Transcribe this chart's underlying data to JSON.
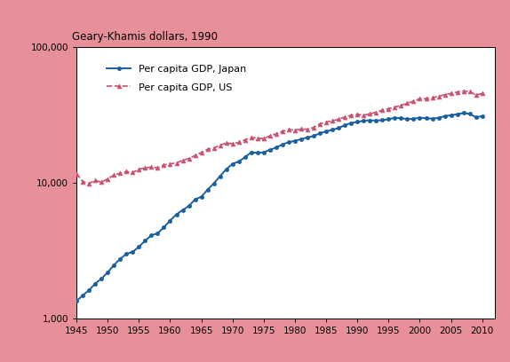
{
  "title": "Geary-Khamis dollars, 1990",
  "background_color": "#e8909a",
  "plot_background": "#ffffff",
  "japan_color": "#1a5fa0",
  "us_color": "#c85070",
  "japan_label": "Per capita GDP, Japan",
  "us_label": "Per capita GDP, US",
  "xlim": [
    1945,
    2012
  ],
  "ylim_log": [
    1000,
    100000
  ],
  "xticks": [
    1945,
    1950,
    1955,
    1960,
    1965,
    1970,
    1975,
    1980,
    1985,
    1990,
    1995,
    2000,
    2005,
    2010
  ],
  "yticks": [
    1000,
    10000,
    100000
  ],
  "ytick_labels": [
    "1,000",
    "10,000",
    "100,000"
  ],
  "japan_years": [
    1945,
    1946,
    1947,
    1948,
    1949,
    1950,
    1951,
    1952,
    1953,
    1954,
    1955,
    1956,
    1957,
    1958,
    1959,
    1960,
    1961,
    1962,
    1963,
    1964,
    1965,
    1966,
    1967,
    1968,
    1969,
    1970,
    1971,
    1972,
    1973,
    1974,
    1975,
    1976,
    1977,
    1978,
    1979,
    1980,
    1981,
    1982,
    1983,
    1984,
    1985,
    1986,
    1987,
    1988,
    1989,
    1990,
    1991,
    1992,
    1993,
    1994,
    1995,
    1996,
    1997,
    1998,
    1999,
    2000,
    2001,
    2002,
    2003,
    2004,
    2005,
    2006,
    2007,
    2008,
    2009,
    2010
  ],
  "japan_gdp": [
    1346,
    1482,
    1617,
    1810,
    1970,
    2188,
    2480,
    2750,
    3000,
    3100,
    3380,
    3750,
    4100,
    4250,
    4700,
    5270,
    5850,
    6300,
    6750,
    7550,
    7900,
    8900,
    9900,
    11200,
    12600,
    13800,
    14350,
    15450,
    16800,
    16600,
    16800,
    17500,
    18200,
    19200,
    19900,
    20400,
    21000,
    21600,
    22100,
    23200,
    23900,
    24600,
    25300,
    26600,
    27600,
    28100,
    28700,
    28900,
    28700,
    29000,
    29400,
    30200,
    29900,
    29500,
    29600,
    30200,
    29900,
    29700,
    30100,
    31000,
    31500,
    32000,
    32700,
    32200,
    30400,
    31000
  ],
  "us_years": [
    1945,
    1946,
    1947,
    1948,
    1949,
    1950,
    1951,
    1952,
    1953,
    1954,
    1955,
    1956,
    1957,
    1958,
    1959,
    1960,
    1961,
    1962,
    1963,
    1964,
    1965,
    1966,
    1967,
    1968,
    1969,
    1970,
    1971,
    1972,
    1973,
    1974,
    1975,
    1976,
    1977,
    1978,
    1979,
    1980,
    1981,
    1982,
    1983,
    1984,
    1985,
    1986,
    1987,
    1988,
    1989,
    1990,
    1991,
    1992,
    1993,
    1994,
    1995,
    1996,
    1997,
    1998,
    1999,
    2000,
    2001,
    2002,
    2003,
    2004,
    2005,
    2006,
    2007,
    2008,
    2009,
    2010
  ],
  "us_gdp": [
    11700,
    10200,
    9900,
    10400,
    10100,
    10700,
    11400,
    11800,
    12100,
    11900,
    12600,
    12900,
    13050,
    12900,
    13550,
    13800,
    14000,
    14650,
    15100,
    15900,
    16750,
    17650,
    18050,
    18950,
    19650,
    19400,
    19850,
    20750,
    21600,
    21300,
    21150,
    22200,
    22950,
    23950,
    24650,
    24450,
    24900,
    24800,
    25600,
    27200,
    28050,
    28650,
    29350,
    30650,
    31400,
    31900,
    31500,
    32200,
    33100,
    34300,
    35100,
    36100,
    37200,
    38500,
    40000,
    41600,
    41800,
    42300,
    43300,
    44600,
    45600,
    46600,
    47500,
    46900,
    44400,
    45500
  ]
}
